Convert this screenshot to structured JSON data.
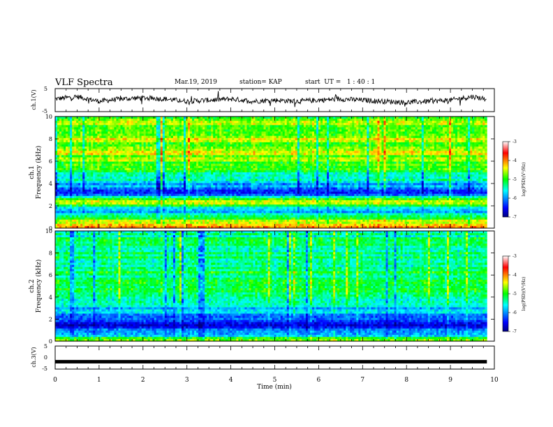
{
  "header": {
    "title": "VLF Spectra",
    "date": "Mar.19, 2019",
    "station": "station= KAP",
    "start": "start  UT =   1 : 40 : 1"
  },
  "chart_data": [
    {
      "type": "line",
      "panel": "ch1-waveform",
      "ylabel": "ch.1(V)",
      "ylim": [
        -5,
        5
      ],
      "yticks": [
        "5",
        "-5"
      ],
      "xlim": [
        0,
        10
      ],
      "x_end": 9.83,
      "series": [
        {
          "values_description_free": true,
          "x": [
            0.0,
            0.5,
            1.0,
            1.5,
            2.0,
            2.5,
            3.0,
            3.5,
            4.0,
            4.5,
            5.0,
            5.5,
            6.0,
            6.5,
            7.0,
            7.5,
            8.0,
            8.5,
            9.0,
            9.5,
            9.83
          ],
          "y": [
            0.5,
            1.5,
            -0.5,
            0.5,
            1.0,
            0.5,
            -0.5,
            0.0,
            0.5,
            -0.5,
            0.0,
            -0.5,
            0.0,
            0.5,
            0.0,
            -0.5,
            -1.0,
            -0.5,
            0.0,
            1.5,
            0.5
          ]
        }
      ]
    },
    {
      "type": "heatmap",
      "panel": "ch1-spectrogram",
      "ylabel": "ch.1\nFrequency (kHz)",
      "ylim": [
        0,
        10
      ],
      "yticks": [
        "0",
        "2",
        "4",
        "6",
        "8",
        "10"
      ],
      "xlim": [
        0,
        10
      ],
      "x_end": 9.83,
      "colorbar": {
        "label": "log(PSD)(V²/Hz)",
        "ticks": [
          "-3",
          "-4",
          "-5",
          "-6",
          "-7"
        ],
        "range": [
          -7,
          -3
        ]
      },
      "frequency_profile_khz": [
        0,
        0.3,
        0.6,
        1.0,
        1.5,
        2.0,
        2.3,
        2.6,
        3.0,
        3.3,
        3.8,
        4.2,
        5.0,
        6.0,
        6.6,
        7.2,
        8.0,
        9.0,
        10.0
      ],
      "frequency_profile_logpsd": [
        -3.8,
        -4.2,
        -4.6,
        -5.4,
        -5.8,
        -5.2,
        -4.4,
        -5.0,
        -6.2,
        -6.4,
        -6.0,
        -5.6,
        -5.2,
        -4.9,
        -4.5,
        -4.8,
        -4.6,
        -4.7,
        -4.8
      ]
    },
    {
      "type": "heatmap",
      "panel": "ch2-spectrogram",
      "ylabel": "ch.2\nFrequency (kHz)",
      "ylim": [
        0,
        10
      ],
      "yticks": [
        "0",
        "2",
        "4",
        "6",
        "8",
        "10"
      ],
      "xlim": [
        0,
        10
      ],
      "x_end": 9.83,
      "colorbar": {
        "label": "log(PSD)(V²/Hz)",
        "ticks": [
          "-3",
          "-4",
          "-5",
          "-6",
          "-7"
        ],
        "range": [
          -7,
          -3
        ]
      },
      "frequency_profile_khz": [
        0,
        0.3,
        0.6,
        1.0,
        1.5,
        2.0,
        2.5,
        3.0,
        3.5,
        4.0,
        5.0,
        6.0,
        7.0,
        8.0,
        9.0,
        10.0
      ],
      "frequency_profile_logpsd": [
        -4.6,
        -5.2,
        -5.8,
        -6.3,
        -6.6,
        -6.1,
        -5.9,
        -5.7,
        -5.5,
        -5.4,
        -5.2,
        -5.2,
        -5.3,
        -5.3,
        -5.3,
        -5.4
      ]
    },
    {
      "type": "line",
      "panel": "ch3-waveform",
      "ylabel": "ch.3(V)",
      "ylim": [
        -5,
        5
      ],
      "yticks": [
        "5",
        "0",
        "-5"
      ],
      "xlim": [
        0,
        10
      ],
      "xlabel": "Time (min)",
      "xticks": [
        "0",
        "1",
        "2",
        "3",
        "4",
        "5",
        "6",
        "7",
        "8",
        "9",
        "10"
      ],
      "series": [
        {
          "x": [
            0,
            9.83
          ],
          "y": [
            -1.8,
            -1.8
          ]
        }
      ]
    }
  ]
}
